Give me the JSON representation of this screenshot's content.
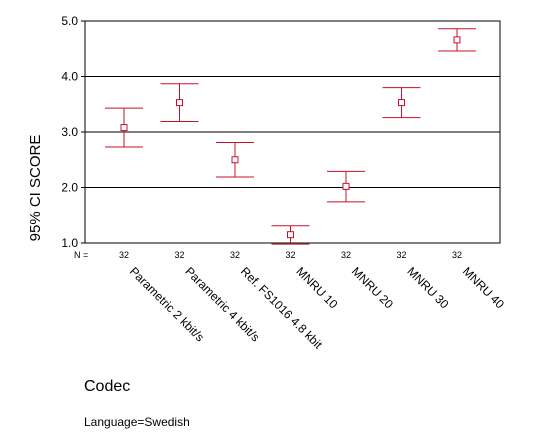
{
  "chart_data": {
    "type": "errorbar",
    "title": "",
    "xlabel": "Codec",
    "ylabel": "95% CI SCORE",
    "ylim": [
      1.0,
      5.0
    ],
    "yticks": [
      "1.0",
      "2.0",
      "3.0",
      "4.0",
      "5.0"
    ],
    "ytick_values": [
      1.0,
      2.0,
      3.0,
      4.0,
      5.0
    ],
    "grid_y": [
      2.0,
      3.0,
      4.0
    ],
    "n_label": "N =",
    "color": "#c8102e",
    "note": "Language=Swedish",
    "categories": [
      "Parametric 2 kbit/s",
      "Parametric 4 kbit/s",
      "Ref. FS1016 4.8 kbit",
      "MNRU 10",
      "MNRU 20",
      "MNRU 30",
      "MNRU 40"
    ],
    "n": [
      "32",
      "32",
      "32",
      "32",
      "32",
      "32",
      "32"
    ],
    "means": [
      3.08,
      3.53,
      2.5,
      1.15,
      2.02,
      3.53,
      4.66
    ],
    "lower": [
      2.73,
      3.19,
      2.19,
      0.98,
      1.74,
      3.26,
      4.46
    ],
    "upper": [
      3.43,
      3.87,
      2.81,
      1.31,
      2.29,
      3.8,
      4.86
    ]
  }
}
